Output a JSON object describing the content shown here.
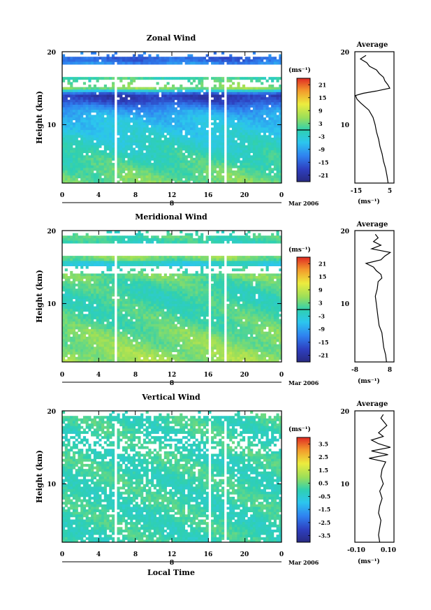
{
  "chart_data": [
    {
      "type": "heatmap",
      "title": "Zonal Wind",
      "ylabel": "Height (km)",
      "yticks": [
        "20",
        "10"
      ],
      "xticks": [
        "0",
        "4",
        "8",
        "12",
        "16",
        "20",
        "0"
      ],
      "date_tick": "8",
      "date_label": "Mar 2006",
      "xlim": [
        0,
        24
      ],
      "ylim": [
        2,
        20
      ],
      "colorbar": {
        "unit": "(ms⁻¹)",
        "ticks": [
          "21",
          "15",
          "9",
          "3",
          "-3",
          "-9",
          "-15",
          "-21"
        ],
        "range": [
          -24,
          24
        ]
      },
      "profile": {
        "title": "Average",
        "yticks": [
          "20",
          "10"
        ],
        "xticks": [
          "-15",
          "5"
        ],
        "xlim": [
          -20,
          8
        ],
        "unit": "(ms⁻¹)",
        "height_km": [
          2.0,
          3.0,
          4.0,
          5.0,
          6.0,
          7.0,
          8.0,
          9.0,
          10.0,
          11.0,
          11.5,
          12.0,
          12.5,
          13.0,
          13.5,
          14.0,
          14.3,
          14.6,
          15.0,
          15.5,
          16.0,
          16.5,
          17.0,
          17.5,
          18.0,
          18.5,
          19.0,
          19.5
        ],
        "wind_ms": [
          3.8,
          3.0,
          2.0,
          0.5,
          -0.5,
          -2.0,
          -3.0,
          -4.5,
          -5.5,
          -7.0,
          -8.5,
          -10.0,
          -13.0,
          -16.0,
          -18.5,
          -19.5,
          -14.0,
          -5.0,
          5.0,
          3.5,
          1.5,
          0.5,
          -2.5,
          -4.5,
          -9.5,
          -11.5,
          -16.0,
          -12.0
        ]
      }
    },
    {
      "type": "heatmap",
      "title": "Meridional Wind",
      "ylabel": "Height (km)",
      "yticks": [
        "20",
        "10"
      ],
      "xticks": [
        "0",
        "4",
        "8",
        "12",
        "16",
        "20",
        "0"
      ],
      "date_tick": "8",
      "date_label": "Mar 2006",
      "xlim": [
        0,
        24
      ],
      "ylim": [
        2,
        20
      ],
      "colorbar": {
        "unit": "(ms⁻¹)",
        "ticks": [
          "21",
          "15",
          "9",
          "3",
          "-3",
          "-9",
          "-15",
          "-21"
        ],
        "range": [
          -24,
          24
        ]
      },
      "profile": {
        "title": "Average",
        "yticks": [
          "20",
          "10"
        ],
        "xticks": [
          "-8",
          "8"
        ],
        "xlim": [
          -11,
          10
        ],
        "unit": "(ms⁻¹)",
        "height_km": [
          2.0,
          3.0,
          4.0,
          5.0,
          6.0,
          7.0,
          8.0,
          9.0,
          10.0,
          11.0,
          12.0,
          13.0,
          13.5,
          14.0,
          14.5,
          15.0,
          15.5,
          16.0,
          16.5,
          17.0,
          17.5,
          18.0,
          18.5,
          19.0,
          19.5
        ],
        "wind_ms": [
          6.0,
          5.5,
          4.5,
          4.0,
          3.5,
          2.0,
          1.5,
          1.0,
          0.5,
          0.0,
          1.0,
          1.5,
          3.5,
          3.0,
          0.5,
          -1.0,
          -5.0,
          3.0,
          5.0,
          8.0,
          -2.0,
          3.0,
          -1.0,
          1.5,
          0.0
        ]
      }
    },
    {
      "type": "heatmap",
      "title": "Vertical Wind",
      "ylabel": "Height (km)",
      "xlabel": "Local Time",
      "yticks": [
        "20",
        "10"
      ],
      "xticks": [
        "0",
        "4",
        "8",
        "12",
        "16",
        "20",
        "0"
      ],
      "date_tick": "8",
      "date_label": "Mar 2006",
      "xlim": [
        0,
        24
      ],
      "ylim": [
        2,
        20
      ],
      "colorbar": {
        "unit": "(ms⁻¹)",
        "ticks": [
          "3.5",
          "2.5",
          "1.5",
          "0.5",
          "-0.5",
          "-1.5",
          "-2.5",
          "-3.5"
        ],
        "range": [
          -4,
          4
        ]
      },
      "profile": {
        "title": "Average",
        "yticks": [
          "20",
          "10"
        ],
        "xticks": [
          "-0.10",
          "0.10"
        ],
        "xlim": [
          -0.18,
          0.15
        ],
        "unit": "(ms⁻¹)",
        "height_km": [
          2.0,
          3.0,
          4.0,
          5.0,
          6.0,
          7.0,
          8.0,
          9.0,
          10.0,
          11.0,
          12.0,
          13.0,
          13.5,
          14.0,
          14.5,
          15.0,
          15.5,
          16.0,
          16.5,
          17.0,
          18.0,
          19.0,
          19.5
        ],
        "wind_ms": [
          0.03,
          0.02,
          0.03,
          0.04,
          0.02,
          0.03,
          0.05,
          0.03,
          0.06,
          0.04,
          0.05,
          0.08,
          -0.06,
          0.1,
          -0.04,
          0.12,
          0.02,
          -0.04,
          0.06,
          0.02,
          0.09,
          0.04,
          0.06
        ]
      }
    }
  ]
}
